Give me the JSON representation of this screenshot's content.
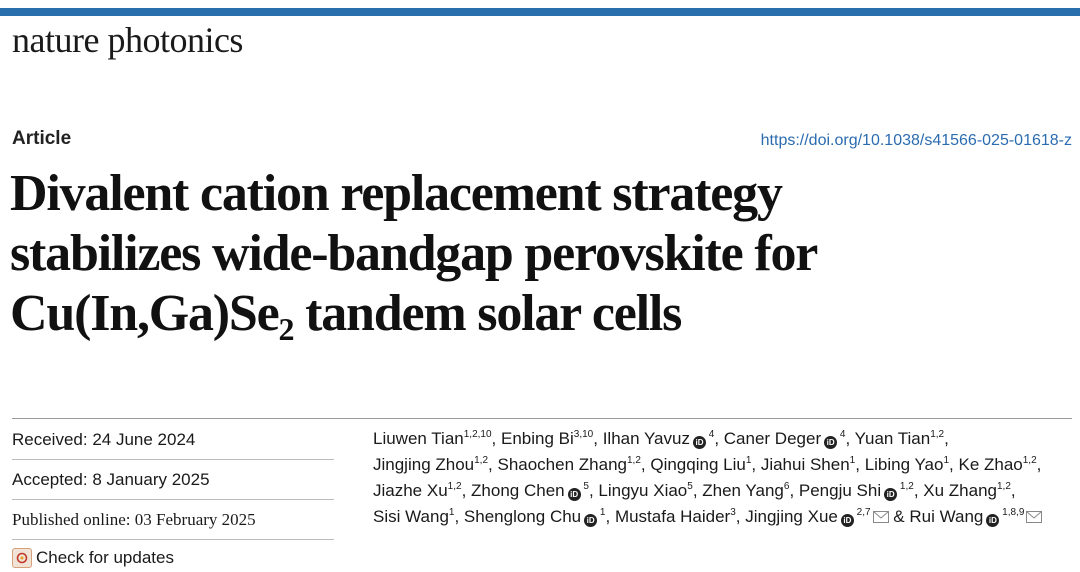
{
  "journal": {
    "name": "nature photonics",
    "bar_color": "#2a6fad"
  },
  "article": {
    "type": "Article",
    "doi": "https://doi.org/10.1038/s41566-025-01618-z",
    "title_line1": "Divalent cation replacement strategy",
    "title_line2": "stabilizes wide-bandgap perovskite for",
    "title_line3_pre": "Cu(In,Ga)Se",
    "title_line3_sub": "2",
    "title_line3_post": " tandem solar cells"
  },
  "dates": {
    "received": "Received: 24 June 2024",
    "accepted": "Accepted: 8 January 2025",
    "published": "Published online: 03 February 2025",
    "check_updates": "Check for updates"
  },
  "icons": {
    "orcid": "orcid-icon",
    "mail": "mail-icon",
    "updates": "check-updates-icon"
  },
  "authors": [
    {
      "name": "Liuwen Tian",
      "sup": "1,2,10",
      "orcid": false,
      "mail": false
    },
    {
      "name": "Enbing Bi",
      "sup": "3,10",
      "orcid": false,
      "mail": false
    },
    {
      "name": "Ilhan Yavuz",
      "sup": "4",
      "orcid": true,
      "mail": false
    },
    {
      "name": "Caner Deger",
      "sup": "4",
      "orcid": true,
      "mail": false
    },
    {
      "name": "Yuan Tian",
      "sup": "1,2",
      "orcid": false,
      "mail": false
    },
    {
      "name": "Jingjing Zhou",
      "sup": "1,2",
      "orcid": false,
      "mail": false
    },
    {
      "name": "Shaochen Zhang",
      "sup": "1,2",
      "orcid": false,
      "mail": false
    },
    {
      "name": "Qingqing Liu",
      "sup": "1",
      "orcid": false,
      "mail": false
    },
    {
      "name": "Jiahui Shen",
      "sup": "1",
      "orcid": false,
      "mail": false
    },
    {
      "name": "Libing Yao",
      "sup": "1",
      "orcid": false,
      "mail": false
    },
    {
      "name": "Ke Zhao",
      "sup": "1,2",
      "orcid": false,
      "mail": false
    },
    {
      "name": "Jiazhe Xu",
      "sup": "1,2",
      "orcid": false,
      "mail": false
    },
    {
      "name": "Zhong Chen",
      "sup": "5",
      "orcid": true,
      "mail": false
    },
    {
      "name": "Lingyu Xiao",
      "sup": "5",
      "orcid": false,
      "mail": false
    },
    {
      "name": "Zhen Yang",
      "sup": "6",
      "orcid": false,
      "mail": false
    },
    {
      "name": "Pengju Shi",
      "sup": "1,2",
      "orcid": true,
      "mail": false
    },
    {
      "name": "Xu Zhang",
      "sup": "1,2",
      "orcid": false,
      "mail": false
    },
    {
      "name": "Sisi Wang",
      "sup": "1",
      "orcid": false,
      "mail": false
    },
    {
      "name": "Shenglong Chu",
      "sup": "1",
      "orcid": true,
      "mail": false
    },
    {
      "name": "Mustafa Haider",
      "sup": "3",
      "orcid": false,
      "mail": false
    },
    {
      "name": "Jingjing Xue",
      "sup": "2,7",
      "orcid": true,
      "mail": true
    },
    {
      "name": "Rui Wang",
      "sup": "1,8,9",
      "orcid": true,
      "mail": true
    }
  ],
  "author_separator": ", ",
  "author_last_join": " & "
}
